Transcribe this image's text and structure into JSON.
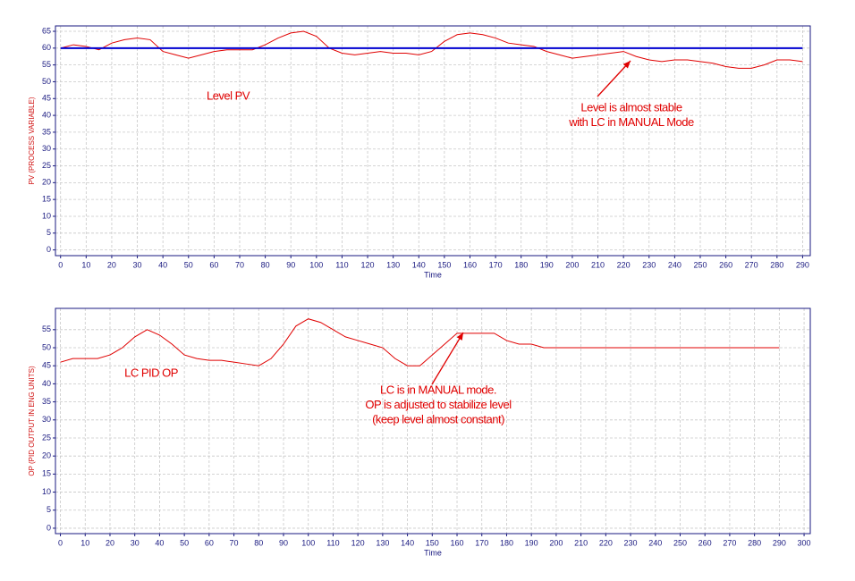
{
  "chart_data": [
    {
      "type": "line",
      "x_label": "Time",
      "y_label": "PV (PROCESS VARIABLE)",
      "x": [
        0,
        5,
        10,
        15,
        20,
        25,
        30,
        35,
        40,
        45,
        50,
        55,
        60,
        65,
        70,
        75,
        80,
        85,
        90,
        95,
        100,
        105,
        110,
        115,
        120,
        125,
        130,
        135,
        140,
        145,
        150,
        155,
        160,
        165,
        170,
        175,
        180,
        185,
        190,
        195,
        200,
        205,
        210,
        215,
        220,
        225,
        230,
        235,
        240,
        245,
        250,
        255,
        260,
        265,
        270,
        275,
        280,
        285,
        290
      ],
      "series": [
        {
          "color": "#e00000",
          "values": [
            60,
            61,
            60.5,
            59.5,
            61.5,
            62.5,
            63,
            62.5,
            59,
            58,
            57,
            58,
            59,
            59.5,
            59.5,
            59.5,
            61,
            63,
            64.5,
            65,
            63.5,
            60,
            58.5,
            58,
            58.5,
            59,
            58.5,
            58.5,
            58,
            59,
            62,
            64,
            64.5,
            64,
            63,
            61.5,
            61,
            60.5,
            59,
            58,
            57,
            57.5,
            58,
            58.5,
            59,
            57.5,
            56.5,
            56,
            56.5,
            56.5,
            56,
            55.5,
            54.5,
            54,
            54,
            55,
            56.5,
            56.5,
            56
          ]
        },
        {
          "color": "#0000d0",
          "values": [
            60,
            60,
            60,
            60,
            60,
            60,
            60,
            60,
            60,
            60,
            60,
            60,
            60,
            60,
            60,
            60,
            60,
            60,
            60,
            60,
            60,
            60,
            60,
            60,
            60,
            60,
            60,
            60,
            60,
            60,
            60,
            60,
            60,
            60,
            60,
            60,
            60,
            60,
            60,
            60,
            60,
            60,
            60,
            60,
            60,
            60,
            60,
            60,
            60,
            60,
            60,
            60,
            60,
            60,
            60,
            60,
            60,
            60,
            60
          ]
        }
      ],
      "xlim": [
        -2,
        293
      ],
      "ylim": [
        -1.7,
        66.6
      ],
      "xticks": [
        0,
        10,
        20,
        30,
        40,
        50,
        60,
        70,
        80,
        90,
        100,
        110,
        120,
        130,
        140,
        150,
        160,
        170,
        180,
        190,
        200,
        210,
        220,
        230,
        240,
        250,
        260,
        270,
        280,
        290
      ],
      "yticks": [
        0,
        5,
        10,
        15,
        20,
        25,
        30,
        35,
        40,
        45,
        50,
        55,
        60,
        65
      ],
      "grid": true,
      "annotations": [
        [
          "Level PV"
        ],
        [
          "Level is almost stable",
          "with LC in MANUAL Mode"
        ]
      ]
    },
    {
      "type": "line",
      "x_label": "Time",
      "y_label": "OP (PID OUTPUT IN ENG UNITS)",
      "x": [
        0,
        5,
        10,
        15,
        20,
        25,
        30,
        35,
        40,
        45,
        50,
        55,
        60,
        65,
        70,
        75,
        80,
        85,
        90,
        95,
        100,
        105,
        110,
        115,
        120,
        125,
        130,
        135,
        140,
        145,
        150,
        155,
        160,
        165,
        170,
        175,
        180,
        185,
        190,
        195,
        200,
        205,
        210,
        215,
        220,
        225,
        230,
        235,
        240,
        245,
        250,
        255,
        260,
        265,
        270,
        275,
        280,
        285,
        290
      ],
      "series": [
        {
          "color": "#e00000",
          "values": [
            46,
            47,
            47,
            47,
            48,
            50,
            53,
            55,
            53.5,
            51,
            48,
            47,
            46.5,
            46.5,
            46,
            45.5,
            45,
            47,
            51,
            56,
            58,
            57,
            55,
            53,
            52,
            51,
            50,
            47,
            45,
            45,
            48,
            51,
            54,
            54,
            54,
            54,
            52,
            51,
            51,
            50,
            50,
            50,
            50,
            50,
            50,
            50,
            50,
            50,
            50,
            50,
            50,
            50,
            50,
            50,
            50,
            50,
            50,
            50,
            50
          ]
        }
      ],
      "xlim": [
        -2,
        302.5
      ],
      "ylim": [
        -1.5,
        60.9
      ],
      "xticks": [
        0,
        10,
        20,
        30,
        40,
        50,
        60,
        70,
        80,
        90,
        100,
        110,
        120,
        130,
        140,
        150,
        160,
        170,
        180,
        190,
        200,
        210,
        220,
        230,
        240,
        250,
        260,
        270,
        280,
        290,
        300
      ],
      "yticks": [
        0,
        5,
        10,
        15,
        20,
        25,
        30,
        35,
        40,
        45,
        50,
        55
      ],
      "grid": true,
      "annotations": [
        [
          "LC PID OP"
        ],
        [
          "LC is in MANUAL mode.",
          "OP is adjusted to stabilize level",
          "(keep level almost constant)"
        ]
      ]
    }
  ]
}
